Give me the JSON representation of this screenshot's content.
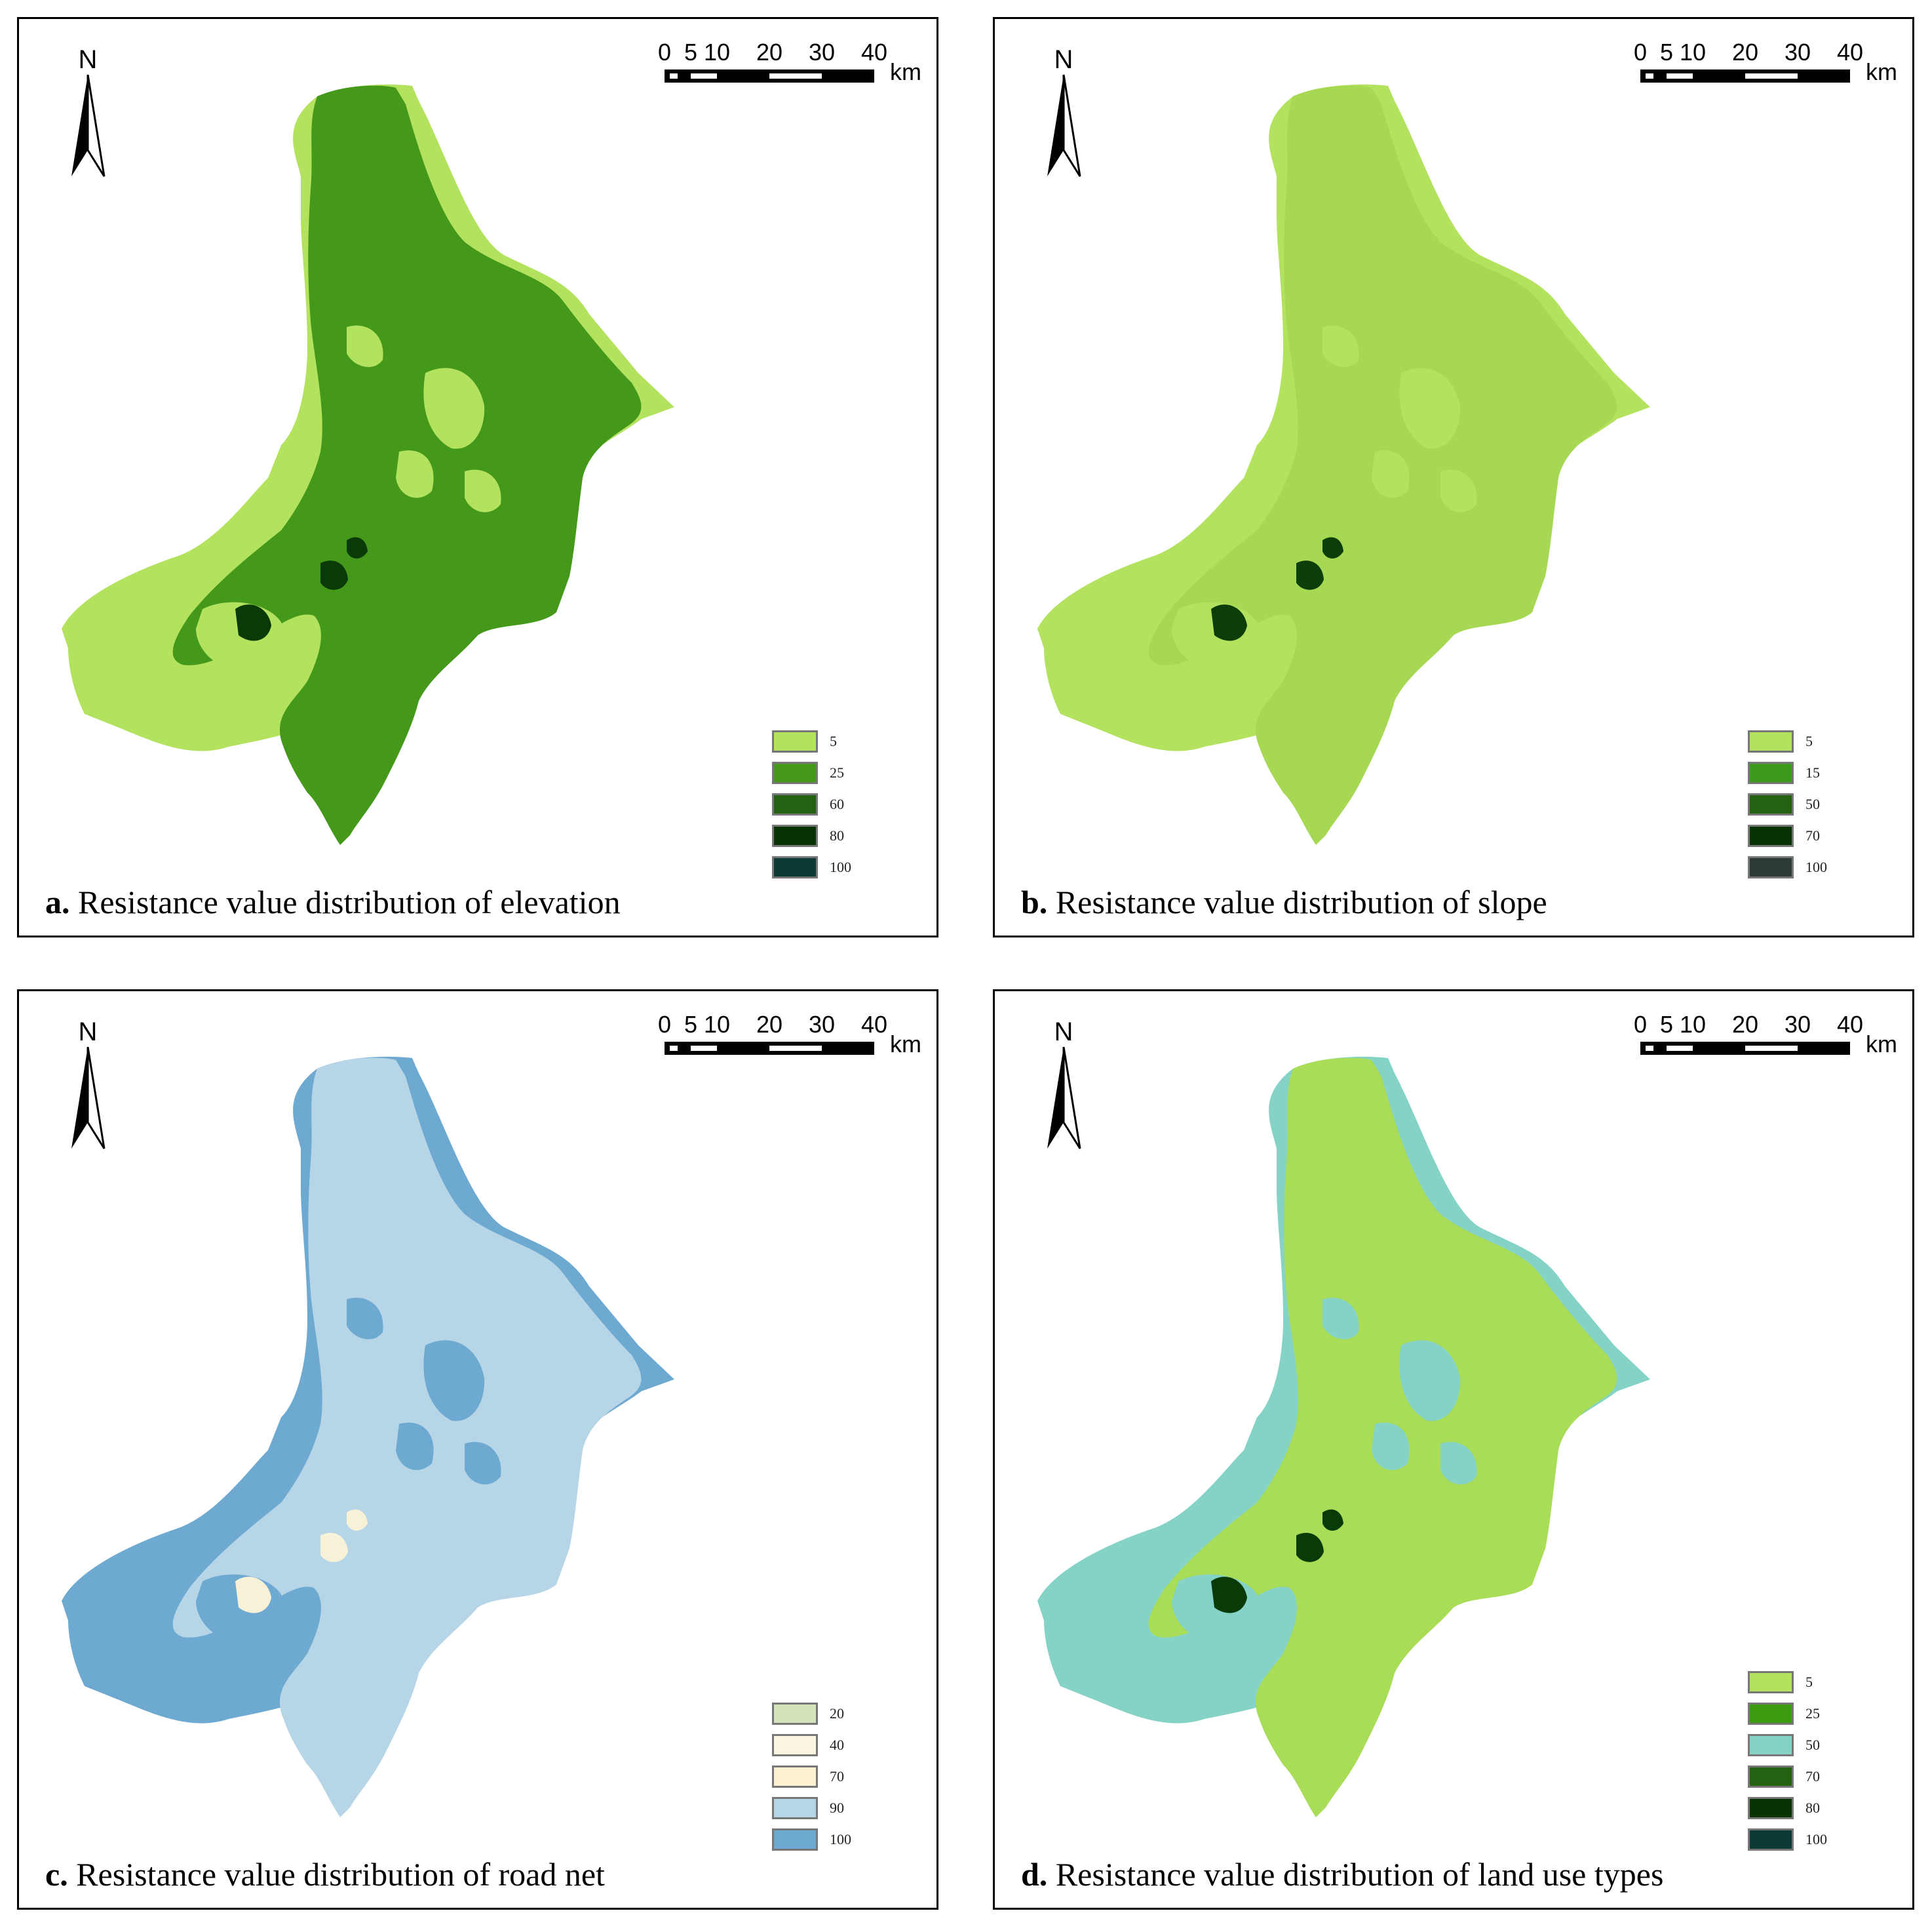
{
  "scalebar": {
    "ticks": [
      "0",
      "5",
      "10",
      "20",
      "30",
      "40"
    ],
    "unit": "km"
  },
  "north_label": "N",
  "panels": [
    {
      "id": "a",
      "caption_prefix": "a.",
      "caption": "Resistance value distribution of elevation",
      "colors": {
        "water": "#b3e25f",
        "land": "#44991a",
        "dark": "#1f5c12",
        "darker": "#0a3a08"
      },
      "legend": [
        {
          "label": "5",
          "color": "#b3e25f"
        },
        {
          "label": "25",
          "color": "#44991a"
        },
        {
          "label": "60",
          "color": "#246212"
        },
        {
          "label": "80",
          "color": "#073305"
        },
        {
          "label": "100",
          "color": "#0e3a36"
        }
      ]
    },
    {
      "id": "b",
      "caption_prefix": "b.",
      "caption": "Resistance value distribution of slope",
      "colors": {
        "water": "#b3e25f",
        "land": "#a6d854",
        "dark": "#2e6a1a",
        "darker": "#0c3e0a"
      },
      "legend": [
        {
          "label": "5",
          "color": "#b3e25f"
        },
        {
          "label": "15",
          "color": "#3e9a1a"
        },
        {
          "label": "50",
          "color": "#246212"
        },
        {
          "label": "70",
          "color": "#073305"
        },
        {
          "label": "100",
          "color": "#2e3a34"
        }
      ]
    },
    {
      "id": "c",
      "caption_prefix": "c.",
      "caption": "Resistance value distribution of road net",
      "colors": {
        "water": "#6ea9d2",
        "land": "#b6d6e8",
        "dark": "#f4efd6",
        "darker": "#f7f1d8"
      },
      "legend": [
        {
          "label": "20",
          "color": "#d3e4bc"
        },
        {
          "label": "40",
          "color": "#fbf5e0"
        },
        {
          "label": "70",
          "color": "#fdf1cf"
        },
        {
          "label": "90",
          "color": "#b6d6e8"
        },
        {
          "label": "100",
          "color": "#6ea9d2"
        }
      ]
    },
    {
      "id": "d",
      "caption_prefix": "d.",
      "caption": "Resistance value distribution of land use types",
      "colors": {
        "water": "#84d3c6",
        "land": "#a9dc57",
        "dark": "#3e9a1a",
        "darker": "#083b07"
      },
      "legend": [
        {
          "label": "5",
          "color": "#b3e25f"
        },
        {
          "label": "25",
          "color": "#3e9a10"
        },
        {
          "label": "50",
          "color": "#84d3c6"
        },
        {
          "label": "70",
          "color": "#246212"
        },
        {
          "label": "80",
          "color": "#083305"
        },
        {
          "label": "100",
          "color": "#0e3a36"
        }
      ]
    }
  ]
}
